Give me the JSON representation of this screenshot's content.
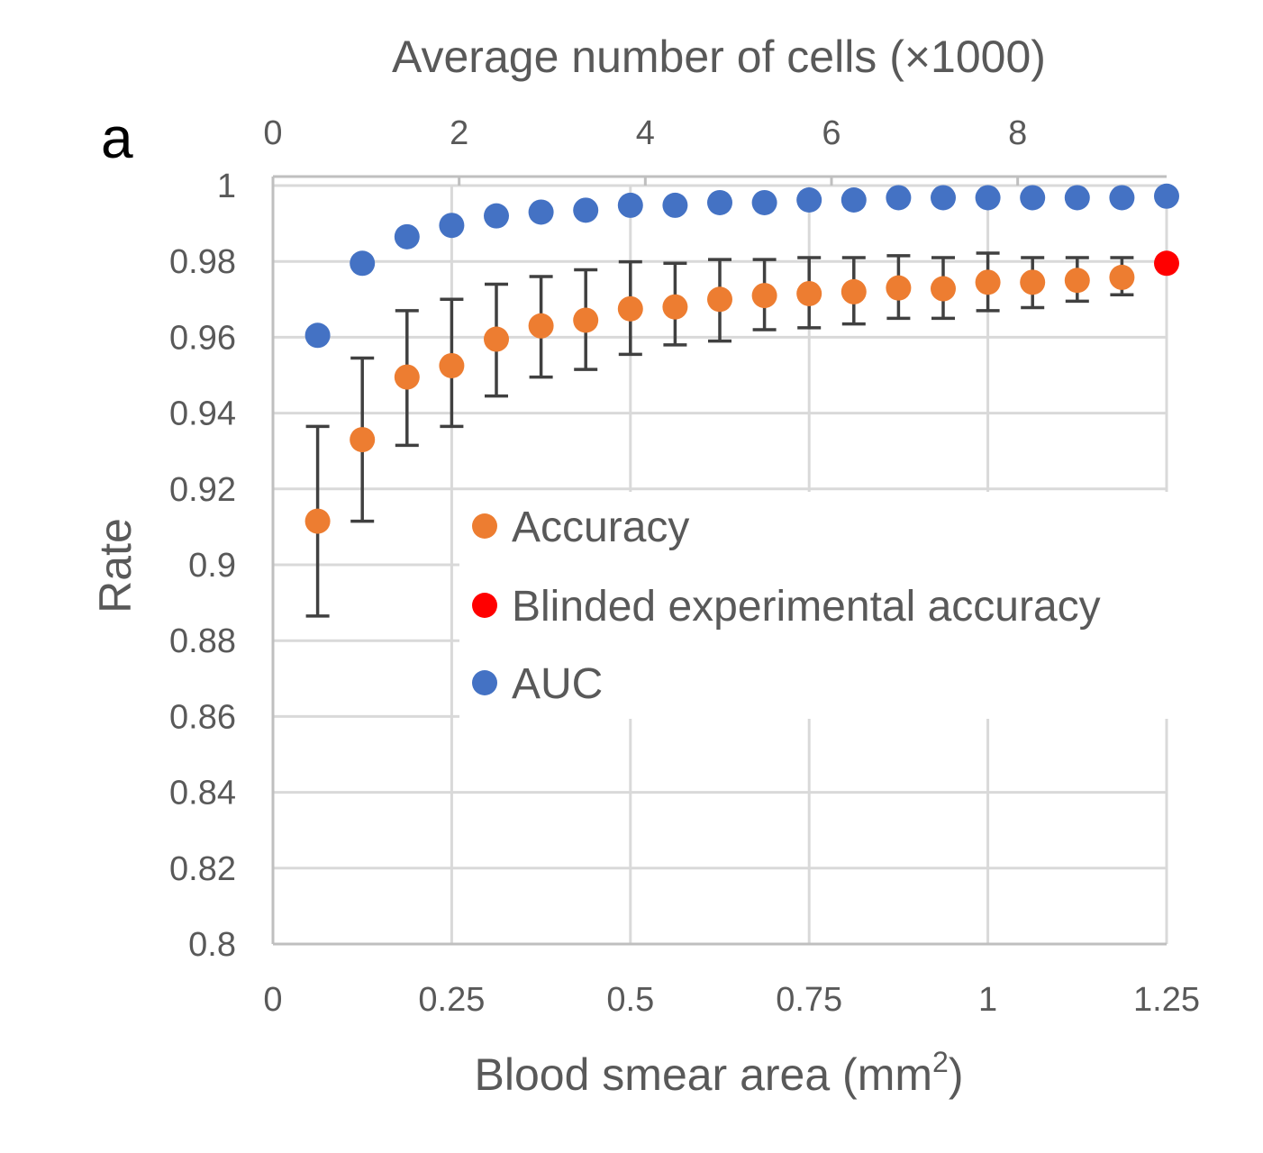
{
  "panel_label": "a",
  "chart_data": {
    "type": "scatter",
    "panel": "a",
    "title": "",
    "xlabel": "Blood smear area (mm",
    "xlabel_superscript": "2",
    "xlabel_suffix": ")",
    "x2label": "Average number of cells (×1000)",
    "ylabel": "Rate",
    "xlim": [
      0,
      1.25
    ],
    "x2lim": [
      0,
      9.6
    ],
    "ylim": [
      0.8,
      1.0
    ],
    "xticks": [
      "0",
      "0.25",
      "0.5",
      "0.75",
      "1",
      "1.25"
    ],
    "xtick_values": [
      0,
      0.25,
      0.5,
      0.75,
      1,
      1.25
    ],
    "x2ticks": [
      "0",
      "2",
      "4",
      "6",
      "8"
    ],
    "x2tick_values": [
      0,
      2,
      4,
      6,
      8
    ],
    "yticks": [
      "0.8",
      "0.82",
      "0.84",
      "0.86",
      "0.88",
      "0.9",
      "0.92",
      "0.94",
      "0.96",
      "0.98",
      "1"
    ],
    "ytick_values": [
      0.8,
      0.82,
      0.84,
      0.86,
      0.88,
      0.9,
      0.92,
      0.94,
      0.96,
      0.98,
      1.0
    ],
    "grid": true,
    "legend_position": "center",
    "colors": {
      "accuracy": "#ed7d31",
      "blinded": "#ff0000",
      "auc": "#4472c4",
      "axis": "#bfbfbf",
      "grid": "#d9d9d9",
      "error_bar": "#404040"
    },
    "series": [
      {
        "name": "Accuracy",
        "color": "#ed7d31",
        "x": [
          0.0625,
          0.125,
          0.1875,
          0.25,
          0.3125,
          0.375,
          0.4375,
          0.5,
          0.5625,
          0.625,
          0.6875,
          0.75,
          0.8125,
          0.875,
          0.9375,
          1.0,
          1.0625,
          1.125,
          1.1875
        ],
        "y": [
          0.9115,
          0.933,
          0.9495,
          0.9525,
          0.9595,
          0.963,
          0.9645,
          0.9675,
          0.968,
          0.97,
          0.971,
          0.9715,
          0.972,
          0.973,
          0.9728,
          0.9745,
          0.9745,
          0.975,
          0.9758
        ],
        "err_low": [
          0.8865,
          0.9115,
          0.9315,
          0.9365,
          0.9445,
          0.9495,
          0.9515,
          0.9555,
          0.958,
          0.959,
          0.962,
          0.9625,
          0.9635,
          0.965,
          0.965,
          0.967,
          0.9678,
          0.9695,
          0.9712
        ],
        "err_high": [
          0.9365,
          0.9545,
          0.967,
          0.97,
          0.974,
          0.976,
          0.9778,
          0.9799,
          0.9795,
          0.9805,
          0.9805,
          0.981,
          0.981,
          0.9815,
          0.981,
          0.9822,
          0.981,
          0.981,
          0.981
        ]
      },
      {
        "name": "Blinded experimental accuracy",
        "color": "#ff0000",
        "x": [
          1.25
        ],
        "y": [
          0.9795
        ]
      },
      {
        "name": "AUC",
        "color": "#4472c4",
        "x": [
          0.0625,
          0.125,
          0.1875,
          0.25,
          0.3125,
          0.375,
          0.4375,
          0.5,
          0.5625,
          0.625,
          0.6875,
          0.75,
          0.8125,
          0.875,
          0.9375,
          1.0,
          1.0625,
          1.125,
          1.1875,
          1.25
        ],
        "y": [
          0.9605,
          0.9795,
          0.9865,
          0.9895,
          0.992,
          0.993,
          0.9935,
          0.9948,
          0.9948,
          0.9955,
          0.9955,
          0.9962,
          0.9962,
          0.9968,
          0.9968,
          0.9968,
          0.9968,
          0.9968,
          0.9968,
          0.9972
        ]
      }
    ]
  }
}
